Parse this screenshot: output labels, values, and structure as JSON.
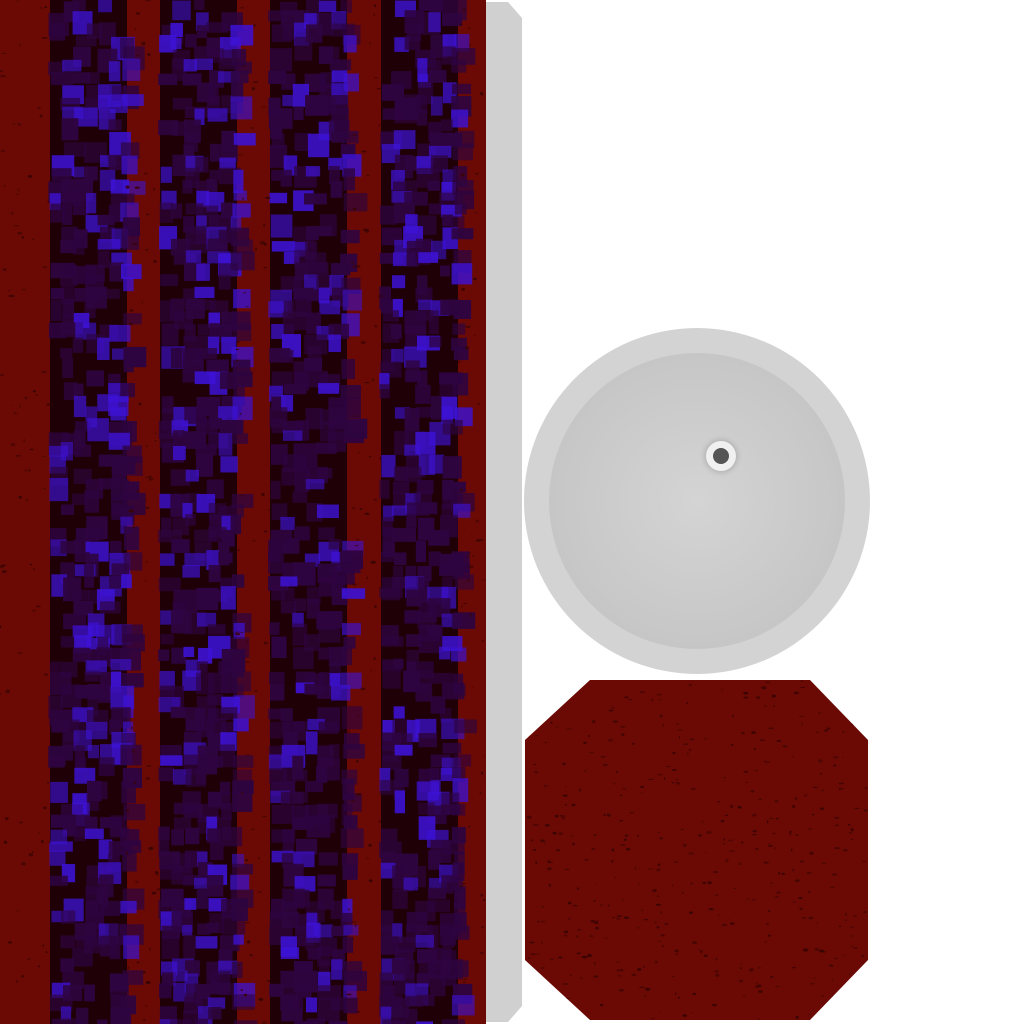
{
  "texture_atlas": {
    "background_color": "#ffffff",
    "side_panel": {
      "stripe_color": "#6b0a05",
      "speck_color": "#3a0402",
      "cell_dark_color": "#1f0006",
      "cell_mid_color": "#2e0440",
      "cell_glow_color": "#3d12d6",
      "rim_color": "#d0d0d0"
    },
    "top_cap": {
      "outer_ring_color": "#d3d3d3",
      "inner_face_color": "#c9c9c9",
      "hole_ring_color": "#f0f0f0",
      "hole_color": "#555555"
    },
    "bottom_cap": {
      "fill_color": "#6b0a05",
      "speck_color": "#3a0402"
    }
  }
}
